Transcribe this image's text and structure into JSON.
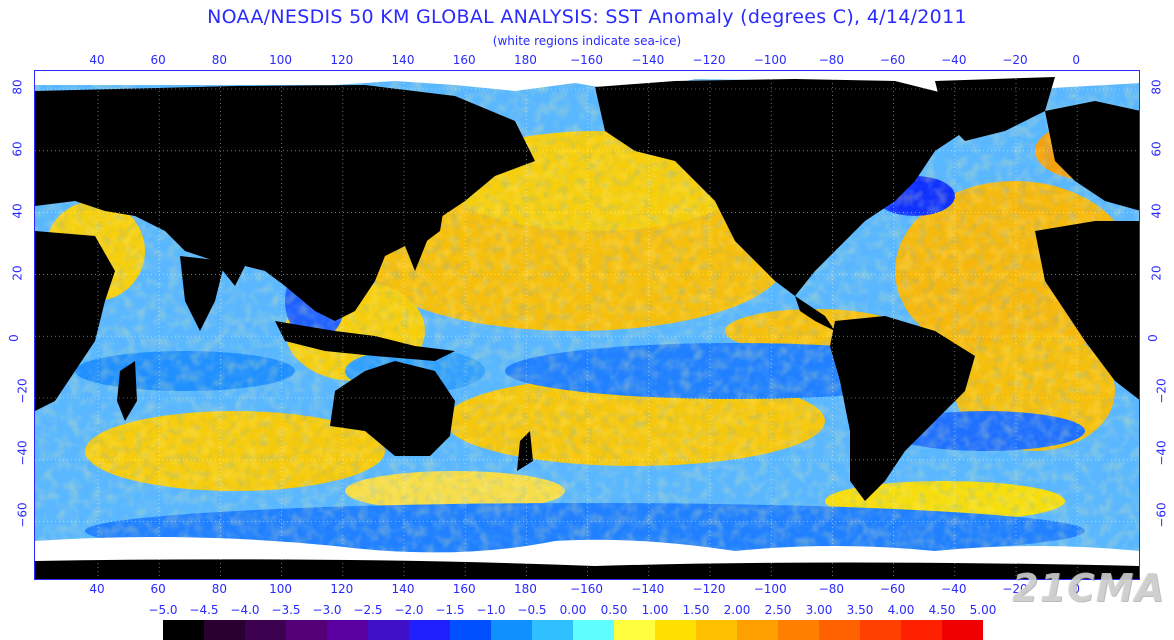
{
  "title": "NOAA/NESDIS 50 KM GLOBAL ANALYSIS: SST Anomaly (degrees C), 4/14/2011",
  "subtitle": "(white regions indicate sea-ice)",
  "lon_labels": [
    "40",
    "60",
    "80",
    "100",
    "120",
    "140",
    "160",
    "180",
    "−160",
    "−140",
    "−120",
    "−100",
    "−80",
    "−60",
    "−40",
    "−20",
    "0"
  ],
  "lat_labels": [
    "80",
    "60",
    "40",
    "20",
    "0",
    "−20",
    "−40",
    "−60"
  ],
  "colorbar": {
    "labels": [
      "−5.0",
      "−4.5",
      "−4.0",
      "−3.5",
      "−3.0",
      "−2.5",
      "−2.0",
      "−1.5",
      "−1.0",
      "−0.5",
      "0.00",
      "0.50",
      "1.00",
      "1.50",
      "2.00",
      "2.50",
      "3.00",
      "3.50",
      "4.00",
      "4.50",
      "5.00"
    ],
    "colors": [
      "#000000",
      "#2a0030",
      "#3c0050",
      "#560078",
      "#5a00a0",
      "#4010c8",
      "#2020ff",
      "#0050ff",
      "#1090ff",
      "#30c0ff",
      "#60ffff",
      "#ffff40",
      "#ffe000",
      "#ffc000",
      "#ffa000",
      "#ff8000",
      "#ff6000",
      "#ff4000",
      "#ff2000",
      "#f00000"
    ]
  },
  "colors": {
    "text": "#2a2aff",
    "land": "#000000",
    "ice": "#ffffff",
    "ocean_warm": "#ffc000",
    "ocean_cool": "#30a8ff"
  },
  "watermark": "21CMA"
}
